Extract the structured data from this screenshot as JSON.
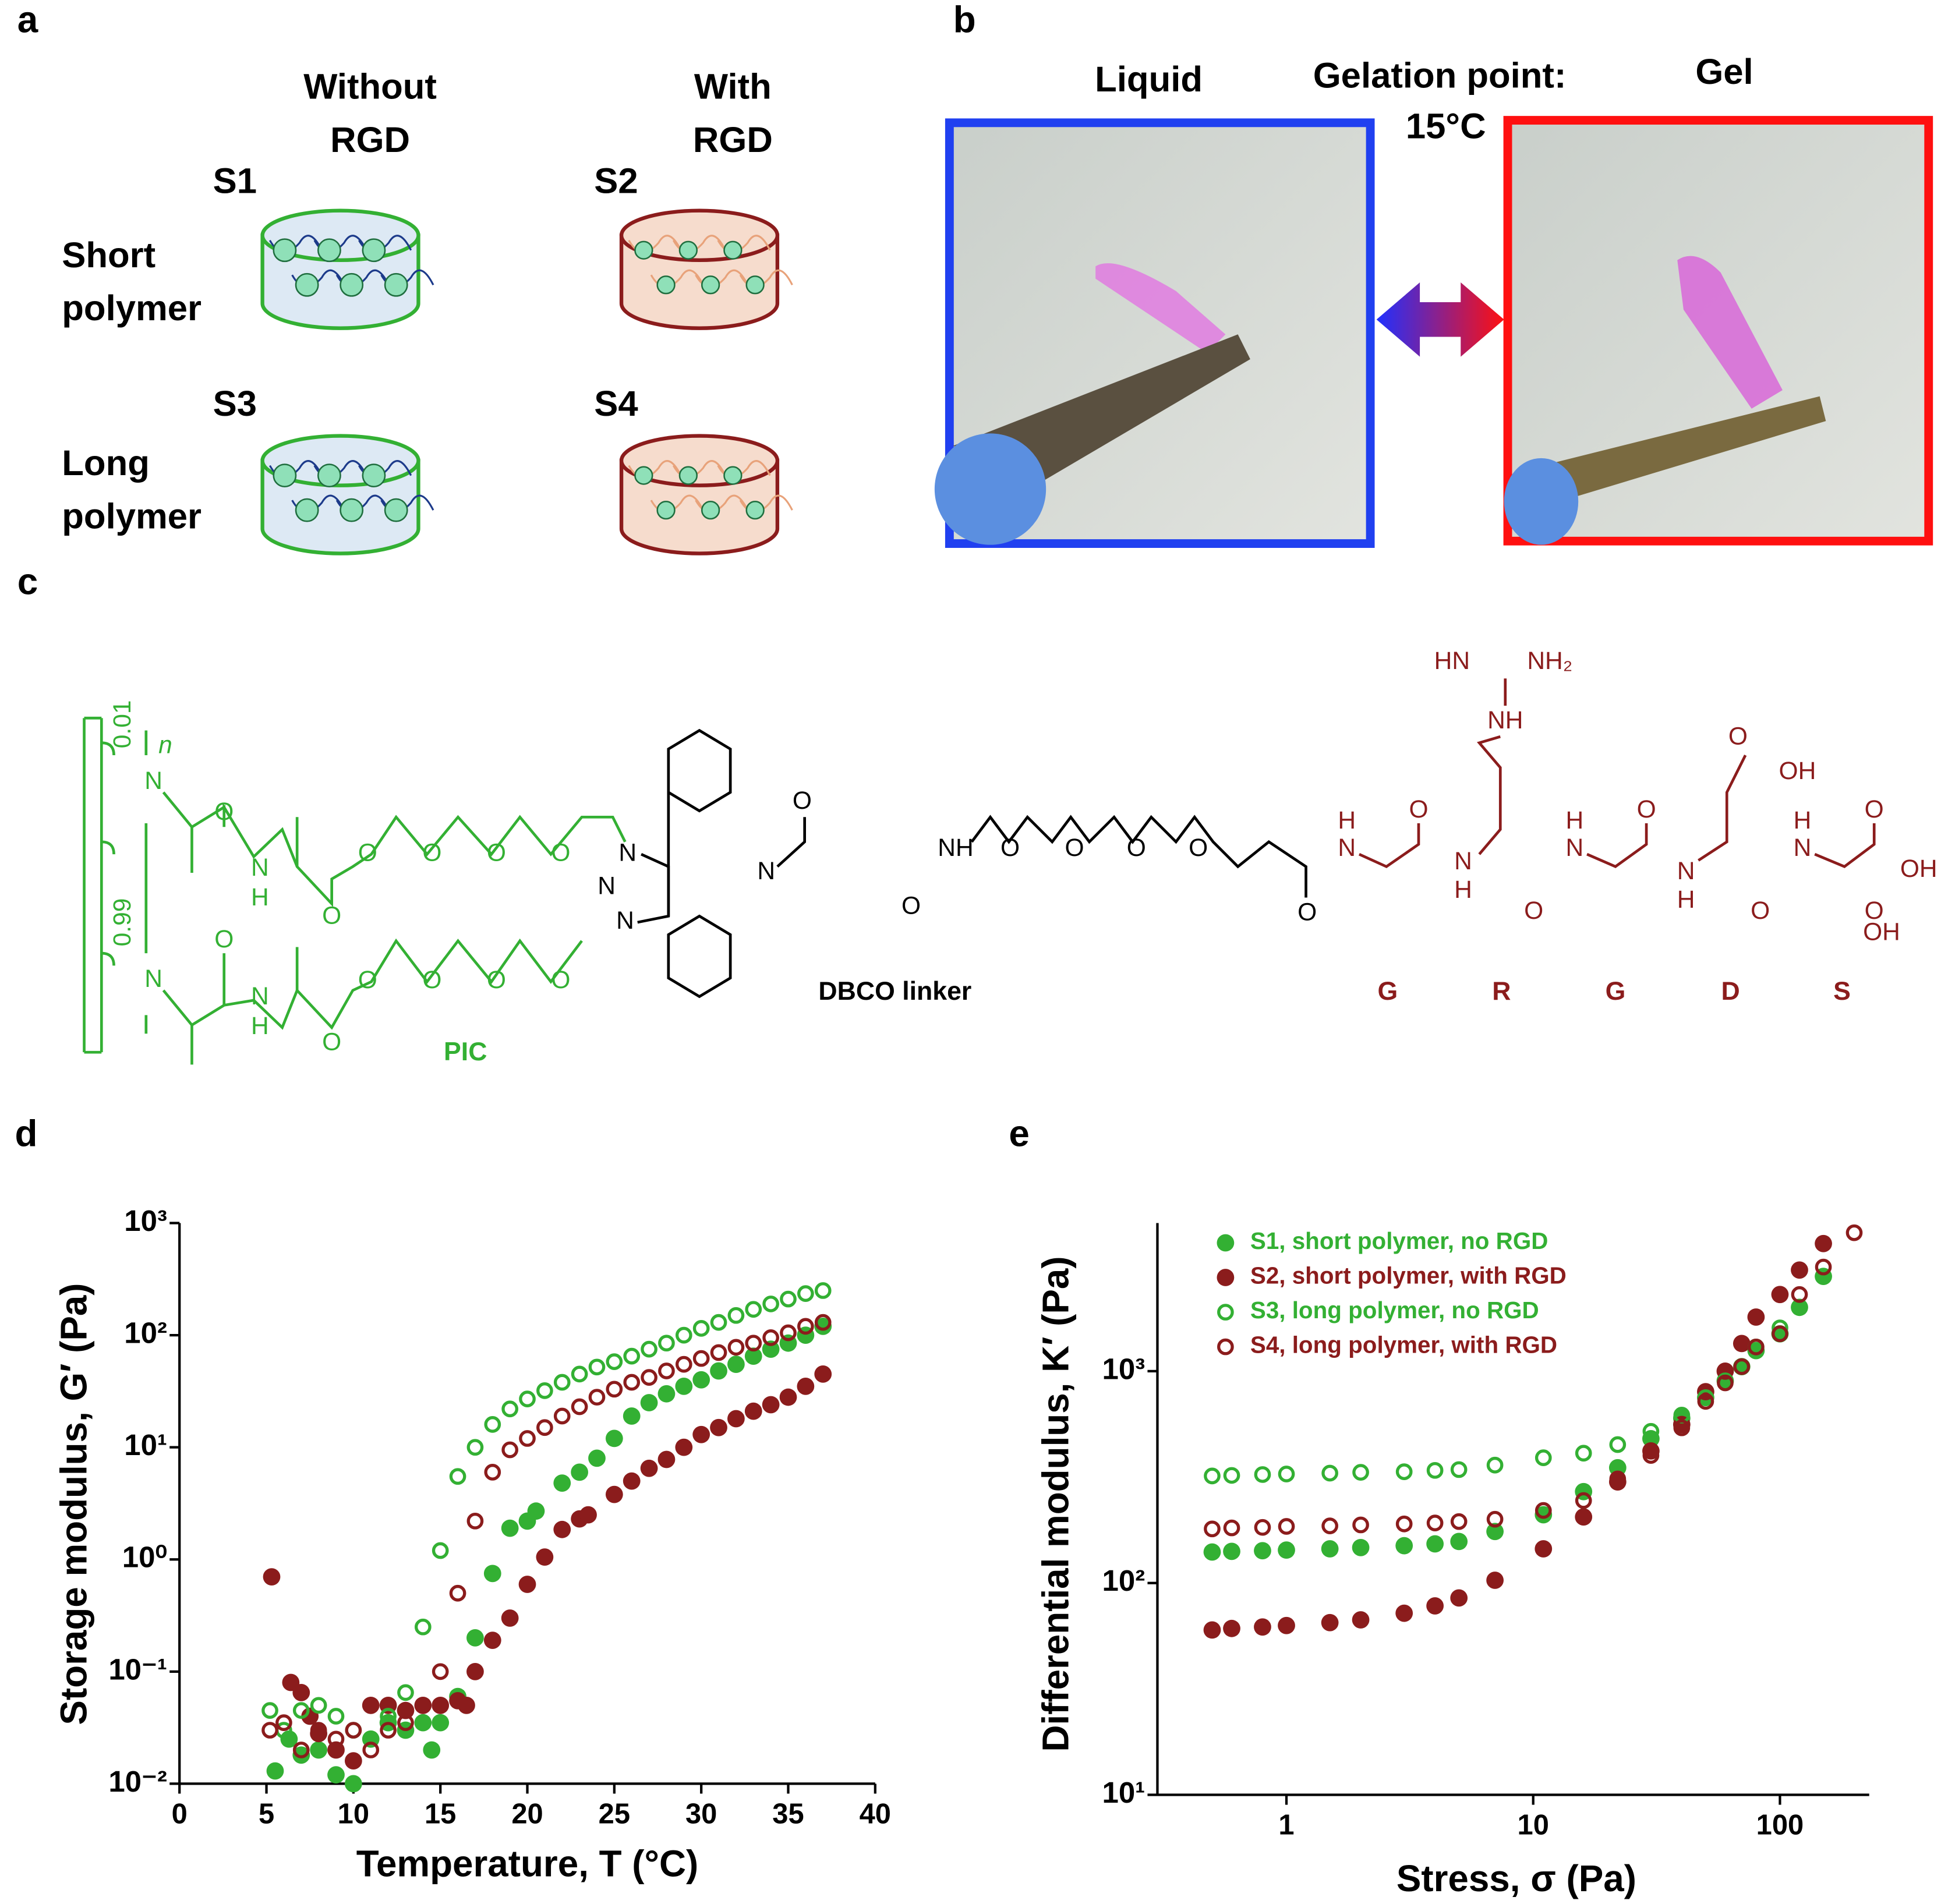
{
  "panel_a": {
    "label": "a",
    "col1": [
      "Without",
      "RGD"
    ],
    "col2": [
      "With",
      "RGD"
    ],
    "samples": [
      "S1",
      "S2",
      "S3",
      "S4"
    ],
    "row1": [
      "Short",
      "polymer"
    ],
    "row2": [
      "Long",
      "polymer"
    ]
  },
  "panel_b": {
    "label": "b",
    "left": "Liquid",
    "middle": [
      "Gelation point:",
      "15°C"
    ],
    "right": "Gel"
  },
  "panel_c": {
    "label": "c",
    "subscripts": [
      "n",
      "0.01",
      "0.99"
    ],
    "atoms": [
      "N",
      "O",
      "N",
      "H",
      "O",
      "O",
      "O",
      "O",
      "O",
      "N",
      "O",
      "N",
      "H",
      "O",
      "O",
      "O",
      "O",
      "O",
      "N",
      "N",
      "N",
      "N",
      "O",
      "O",
      "NH",
      "O",
      "O",
      "O",
      "O",
      "O",
      "H",
      "N",
      "O",
      "N",
      "H",
      "O",
      "HN",
      "NH₂",
      "NH",
      "O",
      "OH",
      "H",
      "N",
      "O",
      "N",
      "H",
      "O",
      "H",
      "N",
      "O",
      "OH",
      "O",
      "OH"
    ],
    "linker": "DBCO linker",
    "polymer": "PIC",
    "residues": [
      "G",
      "R",
      "G",
      "D",
      "S"
    ]
  },
  "chart_data": [
    {
      "type": "scatter",
      "label": "d",
      "xlabel": "Temperature, T (°C)",
      "ylabel": "Storage modulus, G′ (Pa)",
      "xlim": [
        0,
        40
      ],
      "ylim": [
        0.01,
        1000
      ],
      "ylog": true,
      "xticks": [
        0,
        5,
        10,
        15,
        20,
        25,
        30,
        35,
        40
      ],
      "yticks": [
        {
          "value": 0.01,
          "label": "10⁻²"
        },
        {
          "value": 0.1,
          "label": "10⁻¹"
        },
        {
          "value": 1,
          "label": "10⁰"
        },
        {
          "value": 10,
          "label": "10¹"
        },
        {
          "value": 100,
          "label": "10²"
        },
        {
          "value": 1000,
          "label": "10³"
        }
      ],
      "series": [
        {
          "color": "#33b033",
          "marker": "filled",
          "x": [
            5.5,
            6.3,
            7,
            8,
            9,
            10,
            11,
            12,
            13,
            14,
            14.5,
            15,
            16,
            17,
            18,
            19,
            20,
            20.5,
            22,
            23,
            24,
            25,
            26,
            27,
            28,
            29,
            30,
            31,
            32,
            33,
            34,
            35,
            36,
            37
          ],
          "values": [
            0.013,
            0.025,
            0.018,
            0.02,
            0.012,
            0.01,
            0.025,
            0.035,
            0.03,
            0.035,
            0.02,
            0.035,
            0.06,
            0.2,
            0.75,
            1.9,
            2.2,
            2.7,
            4.8,
            6,
            8,
            12,
            19,
            25,
            30,
            35,
            40,
            48,
            55,
            65,
            75,
            85,
            100,
            120
          ]
        },
        {
          "color": "#8b1c1c",
          "marker": "filled",
          "x": [
            5.3,
            6.4,
            7,
            7.5,
            8,
            9,
            10,
            11,
            12,
            13,
            14,
            15,
            16,
            16.5,
            17,
            18,
            19,
            20,
            21,
            22,
            23,
            23.5,
            25,
            26,
            27,
            28,
            29,
            30,
            31,
            32,
            33,
            34,
            35,
            36,
            37
          ],
          "values": [
            0.7,
            0.08,
            0.065,
            0.04,
            0.028,
            0.02,
            0.016,
            0.05,
            0.05,
            0.045,
            0.05,
            0.05,
            0.055,
            0.05,
            0.1,
            0.19,
            0.3,
            0.6,
            1.05,
            1.85,
            2.3,
            2.5,
            3.8,
            5,
            6.5,
            7.8,
            10,
            13,
            15,
            18,
            21,
            24,
            28,
            35,
            45
          ]
        },
        {
          "color": "#33b033",
          "marker": "open",
          "x": [
            5.2,
            6,
            7,
            8,
            9,
            10,
            11,
            12,
            13,
            14,
            15,
            16,
            17,
            18,
            19,
            20,
            21,
            22,
            23,
            24,
            25,
            26,
            27,
            28,
            29,
            30,
            31,
            32,
            33,
            34,
            35,
            36,
            37
          ],
          "values": [
            0.045,
            0.03,
            0.045,
            0.05,
            0.04,
            0.03,
            0.025,
            0.04,
            0.065,
            0.25,
            1.2,
            5.5,
            10,
            16,
            22,
            27,
            32,
            38,
            45,
            52,
            58,
            65,
            75,
            85,
            100,
            115,
            130,
            150,
            170,
            190,
            210,
            235,
            250
          ]
        },
        {
          "color": "#8b1c1c",
          "marker": "open",
          "x": [
            5.2,
            6,
            7,
            8,
            9,
            10,
            11,
            12,
            13,
            14,
            15,
            16,
            17,
            18,
            19,
            20,
            21,
            22,
            23,
            24,
            25,
            26,
            27,
            28,
            29,
            30,
            31,
            32,
            33,
            34,
            35,
            36,
            37
          ],
          "values": [
            0.03,
            0.035,
            0.02,
            0.03,
            0.025,
            0.03,
            0.02,
            0.03,
            0.035,
            0.05,
            0.1,
            0.5,
            2.2,
            6,
            9.5,
            12,
            15,
            19,
            23,
            28,
            33,
            38,
            42,
            48,
            55,
            62,
            70,
            78,
            85,
            95,
            105,
            120,
            130
          ]
        }
      ]
    },
    {
      "type": "scatter",
      "label": "e",
      "xlabel": "Stress, σ (Pa)",
      "ylabel": "Differential modulus, K′ (Pa)",
      "xlim": [
        0.3,
        230
      ],
      "ylim": [
        10,
        5000
      ],
      "xlog": true,
      "ylog": true,
      "legend": "upper left",
      "xticks": [
        1,
        10,
        100
      ],
      "yticks": [
        {
          "value": 10,
          "label": "10¹"
        },
        {
          "value": 100,
          "label": "10²"
        },
        {
          "value": 1000,
          "label": "10³"
        }
      ],
      "series": [
        {
          "name": "S1, short polymer, no RGD",
          "color": "#33b033",
          "marker": "filled",
          "x": [
            0.5,
            0.6,
            0.8,
            1,
            1.5,
            2,
            3,
            4,
            5,
            7,
            11,
            16,
            22,
            30,
            40,
            50,
            60,
            70,
            80,
            100,
            120,
            150
          ],
          "values": [
            140,
            141,
            142,
            143,
            145,
            147,
            150,
            153,
            157,
            175,
            210,
            270,
            350,
            480,
            600,
            750,
            900,
            1050,
            1250,
            1500,
            2000,
            2800
          ]
        },
        {
          "name": "S2, short polymer, with RGD",
          "color": "#8b1c1c",
          "marker": "filled",
          "x": [
            0.5,
            0.6,
            0.8,
            1,
            1.5,
            2,
            3,
            4,
            5,
            7,
            11,
            16,
            22,
            30,
            40,
            50,
            60,
            70,
            80,
            100,
            120,
            150
          ],
          "values": [
            60,
            61,
            62,
            63,
            65,
            67,
            72,
            78,
            85,
            103,
            145,
            205,
            300,
            420,
            560,
            800,
            1000,
            1350,
            1800,
            2300,
            3000,
            4000
          ]
        },
        {
          "name": "S3, long polymer, no RGD",
          "color": "#33b033",
          "marker": "open",
          "x": [
            0.5,
            0.6,
            0.8,
            1,
            1.5,
            2,
            3,
            4,
            5,
            7,
            11,
            16,
            22,
            30,
            40,
            50,
            60,
            70,
            80,
            100,
            120,
            150
          ],
          "values": [
            320,
            322,
            325,
            327,
            330,
            333,
            335,
            340,
            343,
            360,
            390,
            410,
            450,
            520,
            620,
            750,
            900,
            1050,
            1300,
            1600,
            2000,
            2800
          ]
        },
        {
          "name": "S4, long polymer, with RGD",
          "color": "#8b1c1c",
          "marker": "open",
          "x": [
            0.5,
            0.6,
            0.8,
            1,
            1.5,
            2,
            3,
            4,
            5,
            7,
            11,
            16,
            22,
            30,
            40,
            50,
            60,
            70,
            80,
            100,
            120,
            150,
            200
          ],
          "values": [
            180,
            182,
            183,
            185,
            186,
            188,
            190,
            192,
            195,
            200,
            220,
            245,
            310,
            400,
            540,
            720,
            880,
            1050,
            1300,
            1500,
            2300,
            3100,
            4500
          ]
        }
      ]
    }
  ]
}
